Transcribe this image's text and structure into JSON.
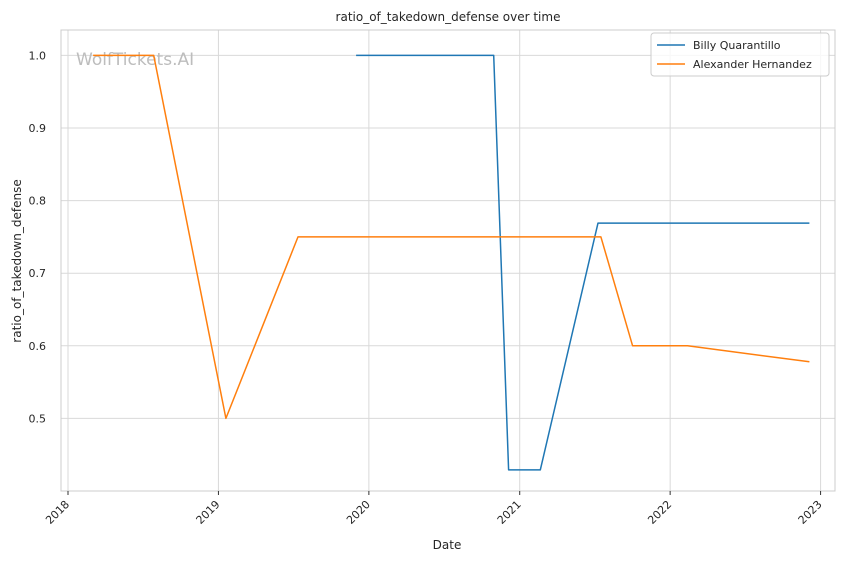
{
  "chart_data": {
    "type": "line",
    "title": "ratio_of_takedown_defense over time",
    "xlabel": "Date",
    "ylabel": "ratio_of_takedown_defense",
    "watermark": "WolfTickets.AI",
    "x_type": "date",
    "xlim": [
      "2017-12-15",
      "2023-02-05"
    ],
    "ylim": [
      0.4,
      1.035
    ],
    "x_ticks": [
      {
        "date": "2018-01-01",
        "label": "2018"
      },
      {
        "date": "2019-01-01",
        "label": "2019"
      },
      {
        "date": "2020-01-01",
        "label": "2020"
      },
      {
        "date": "2021-01-01",
        "label": "2021"
      },
      {
        "date": "2022-01-01",
        "label": "2022"
      },
      {
        "date": "2023-01-01",
        "label": "2023"
      }
    ],
    "y_ticks": [
      {
        "value": 0.5,
        "label": "0.5"
      },
      {
        "value": 0.6,
        "label": "0.6"
      },
      {
        "value": 0.7,
        "label": "0.7"
      },
      {
        "value": 0.8,
        "label": "0.8"
      },
      {
        "value": 0.9,
        "label": "0.9"
      },
      {
        "value": 1.0,
        "label": "1.0"
      }
    ],
    "grid": true,
    "legend_position": "top-right",
    "series": [
      {
        "name": "Billy Quarantillo",
        "color": "#1f77b4",
        "points": [
          {
            "x": "2019-12-01",
            "y": 1.0
          },
          {
            "x": "2020-10-30",
            "y": 1.0
          },
          {
            "x": "2020-12-05",
            "y": 0.429
          },
          {
            "x": "2021-02-20",
            "y": 0.429
          },
          {
            "x": "2021-07-10",
            "y": 0.769
          },
          {
            "x": "2022-12-05",
            "y": 0.769
          }
        ]
      },
      {
        "name": "Alexander Hernandez",
        "color": "#ff7f0e",
        "points": [
          {
            "x": "2018-03-03",
            "y": 1.0
          },
          {
            "x": "2018-07-28",
            "y": 1.0
          },
          {
            "x": "2019-01-19",
            "y": 0.5
          },
          {
            "x": "2019-07-13",
            "y": 0.75
          },
          {
            "x": "2021-07-17",
            "y": 0.75
          },
          {
            "x": "2021-10-02",
            "y": 0.6
          },
          {
            "x": "2022-02-12",
            "y": 0.6
          },
          {
            "x": "2022-12-05",
            "y": 0.578
          }
        ]
      }
    ]
  }
}
